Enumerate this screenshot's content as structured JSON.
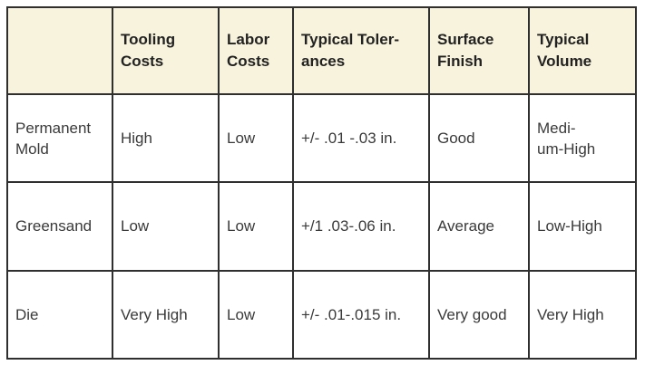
{
  "table": {
    "headers": [
      "",
      "Tooling Costs",
      "Labor Costs",
      "Typical Toler-ances",
      "Surface Finish",
      "Typical Volume"
    ],
    "header_lines": [
      [],
      [
        "Tooling",
        "Costs"
      ],
      [
        "Labor",
        "Costs"
      ],
      [
        "Typical Toler-",
        "ances"
      ],
      [
        "Surface",
        "Finish"
      ],
      [
        "Typical",
        "Volume"
      ]
    ],
    "rows": [
      {
        "label_lines": [
          "Permanent",
          "Mold"
        ],
        "cells": [
          "High",
          "Low",
          "+/- .01 -.03 in.",
          "Good"
        ],
        "volume_lines": [
          "Medi-",
          "um-High"
        ]
      },
      {
        "label_lines": [
          "Greensand"
        ],
        "cells": [
          "Low",
          "Low",
          "+/1 .03-.06 in.",
          "Average"
        ],
        "volume_lines": [
          "Low-High"
        ]
      },
      {
        "label_lines": [
          "Die"
        ],
        "cells": [
          "Very High",
          "Low",
          "+/- .01-.015 in.",
          "Very good"
        ],
        "volume_lines": [
          "Very High"
        ]
      }
    ]
  },
  "colors": {
    "header_background": "#f8f3dc",
    "border": "#2f2f2f"
  }
}
